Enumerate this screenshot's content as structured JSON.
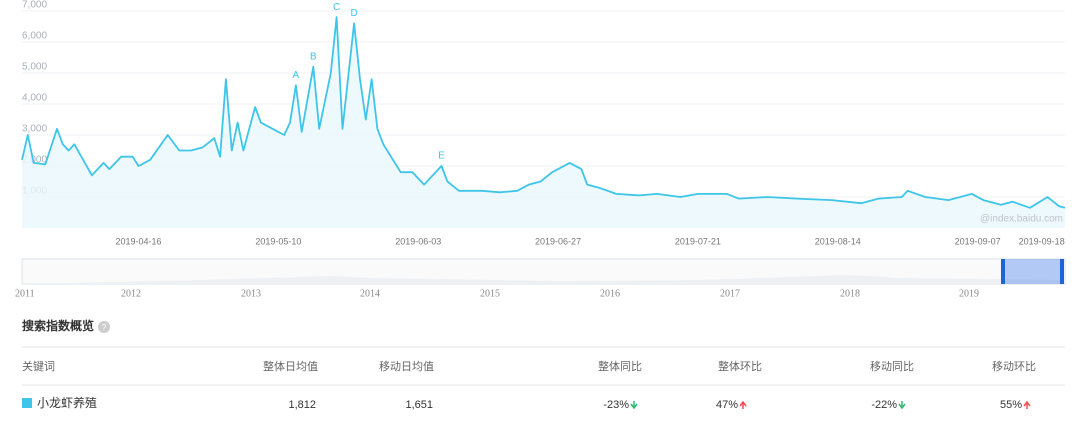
{
  "chart_data": {
    "type": "line",
    "ylim": [
      0,
      7000
    ],
    "yticks": [
      {
        "value": 1000,
        "label": "1,000"
      },
      {
        "value": 2000,
        "label": "2,000"
      },
      {
        "value": 3000,
        "label": "3,000"
      },
      {
        "value": 4000,
        "label": "4,000"
      },
      {
        "value": 5000,
        "label": "5,000"
      },
      {
        "value": 6000,
        "label": "6,000"
      },
      {
        "value": 7000,
        "label": "7,000"
      }
    ],
    "xlim": [
      "2019-03-27",
      "2019-09-22"
    ],
    "xticks": [
      "2019-04-16",
      "2019-05-10",
      "2019-06-03",
      "2019-06-27",
      "2019-07-21",
      "2019-08-14",
      "2019-09-07",
      "2019-09-18"
    ],
    "grid": true,
    "series": [
      {
        "color": "#3ec5e8",
        "x": [
          "2019-03-27",
          "2019-03-28",
          "2019-03-29",
          "2019-03-31",
          "2019-04-02",
          "2019-04-03",
          "2019-04-04",
          "2019-04-05",
          "2019-04-08",
          "2019-04-10",
          "2019-04-11",
          "2019-04-13",
          "2019-04-15",
          "2019-04-16",
          "2019-04-18",
          "2019-04-21",
          "2019-04-23",
          "2019-04-25",
          "2019-04-27",
          "2019-04-29",
          "2019-04-30",
          "2019-05-01",
          "2019-05-02",
          "2019-05-03",
          "2019-05-04",
          "2019-05-06",
          "2019-05-07",
          "2019-05-09",
          "2019-05-11",
          "2019-05-12",
          "2019-05-13",
          "2019-05-14",
          "2019-05-16",
          "2019-05-17",
          "2019-05-19",
          "2019-05-20",
          "2019-05-21",
          "2019-05-23",
          "2019-05-24",
          "2019-05-25",
          "2019-05-26",
          "2019-05-27",
          "2019-05-28",
          "2019-05-30",
          "2019-05-31",
          "2019-06-02",
          "2019-06-04",
          "2019-06-05",
          "2019-06-07",
          "2019-06-08",
          "2019-06-10",
          "2019-06-14",
          "2019-06-17",
          "2019-06-20",
          "2019-06-22",
          "2019-06-24",
          "2019-06-26",
          "2019-06-27",
          "2019-06-29",
          "2019-07-01",
          "2019-07-02",
          "2019-07-04",
          "2019-07-07",
          "2019-07-11",
          "2019-07-14",
          "2019-07-18",
          "2019-07-21",
          "2019-07-26",
          "2019-07-28",
          "2019-08-02",
          "2019-08-07",
          "2019-08-13",
          "2019-08-18",
          "2019-08-21",
          "2019-08-25",
          "2019-08-26",
          "2019-08-29",
          "2019-09-02",
          "2019-09-06",
          "2019-09-08",
          "2019-09-11",
          "2019-09-13",
          "2019-09-16",
          "2019-09-19",
          "2019-09-21",
          "2019-09-22"
        ],
        "values": [
          2200,
          3000,
          2100,
          2050,
          3200,
          2700,
          2500,
          2700,
          1700,
          2100,
          1900,
          2300,
          2300,
          2000,
          2200,
          3000,
          2500,
          2500,
          2600,
          2900,
          2300,
          4800,
          2500,
          3400,
          2500,
          3900,
          3400,
          3200,
          3000,
          3400,
          4600,
          3100,
          5200,
          3200,
          5000,
          6800,
          3200,
          6600,
          4800,
          3500,
          4800,
          3200,
          2700,
          2100,
          1800,
          1800,
          1400,
          1600,
          2000,
          1500,
          1200,
          1200,
          1150,
          1200,
          1400,
          1500,
          1800,
          1900,
          2100,
          1900,
          1400,
          1300,
          1100,
          1050,
          1100,
          1000,
          1100,
          1100,
          950,
          1000,
          950,
          900,
          800,
          950,
          1000,
          1200,
          1000,
          900,
          1100,
          900,
          750,
          850,
          650,
          1000,
          700,
          650
        ]
      }
    ],
    "annotations": [
      {
        "text": "A",
        "x": "2019-05-13"
      },
      {
        "text": "B",
        "x": "2019-05-16"
      },
      {
        "text": "C",
        "x": "2019-05-20"
      },
      {
        "text": "D",
        "x": "2019-05-23"
      },
      {
        "text": "E",
        "x": "2019-06-07"
      }
    ],
    "watermark": "@index.baidu.com",
    "navigator_labels": [
      "2011",
      "2012",
      "2013",
      "2014",
      "2015",
      "2016",
      "2017",
      "2018",
      "2019"
    ]
  },
  "overview": {
    "title": "搜索指数概览",
    "headers": [
      "关键词",
      "整体日均值",
      "移动日均值",
      "整体同比",
      "整体环比",
      "移动同比",
      "移动环比"
    ],
    "row": [
      "小龙虾养殖",
      "1,812",
      "1,651",
      "-23%",
      "47%",
      "-22%",
      "55%"
    ]
  }
}
